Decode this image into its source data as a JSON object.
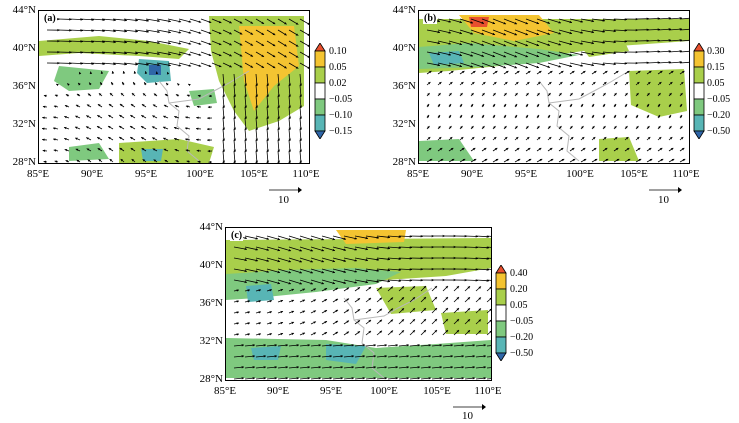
{
  "figure": {
    "panels": [
      {
        "id": "a",
        "label": "(a)",
        "lat_labels": [
          "44°N",
          "40°N",
          "36°N",
          "32°N",
          "28°N"
        ],
        "lon_labels": [
          "85°E",
          "90°E",
          "95°E",
          "100°E",
          "105°E",
          "110°E"
        ],
        "colorbar_labels": [
          "0.10",
          "0.05",
          "0.02",
          "−0.05",
          "−0.10",
          "−0.15"
        ],
        "ref_vector_label": "10"
      },
      {
        "id": "b",
        "label": "(b)",
        "lat_labels": [
          "44°N",
          "40°N",
          "36°N",
          "32°N",
          "28°N"
        ],
        "lon_labels": [
          "85°E",
          "90°E",
          "95°E",
          "100°E",
          "105°E",
          "110°E"
        ],
        "colorbar_labels": [
          "0.30",
          "0.15",
          "0.05",
          "−0.05",
          "−0.20",
          "−0.50"
        ],
        "ref_vector_label": "10"
      },
      {
        "id": "c",
        "label": "(c)",
        "lat_labels": [
          "44°N",
          "40°N",
          "36°N",
          "32°N",
          "28°N"
        ],
        "lon_labels": [
          "85°E",
          "90°E",
          "95°E",
          "100°E",
          "105°E",
          "110°E"
        ],
        "colorbar_labels": [
          "0.40",
          "0.20",
          "0.05",
          "−0.05",
          "−0.20",
          "−0.50"
        ],
        "ref_vector_label": "10"
      }
    ],
    "colors": {
      "strong_positive": "#e8502e",
      "positive": "#f4c431",
      "weak_positive": "#a9cf4b",
      "neutral": "#ffffff",
      "weak_negative": "#7fc97f",
      "negative": "#58b5b5",
      "strong_negative": "#2f66a8",
      "border": "#b8b8b8",
      "arrow": "#000000"
    }
  }
}
